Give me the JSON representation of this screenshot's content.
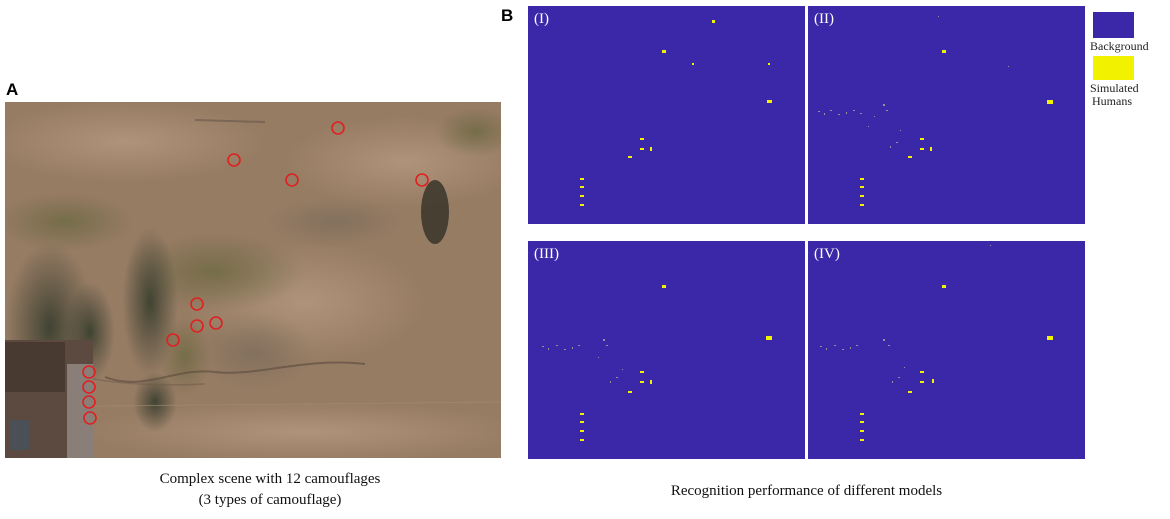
{
  "panel_a": {
    "letter": "A",
    "caption_line1": "Complex scene with 12 camouflages",
    "caption_line2": "(3 types of camouflage)",
    "marker_color": "#e02020"
  },
  "panel_b": {
    "letter": "B",
    "caption": "Recognition performance of different models",
    "maps": [
      {
        "label": "(I)"
      },
      {
        "label": "(II)"
      },
      {
        "label": "(III)"
      },
      {
        "label": "(IV)"
      }
    ]
  },
  "legend": {
    "background_label": "Background",
    "background_color": "#3b28a8",
    "humans_label_line1": "Simulated",
    "humans_label_line2": "Humans",
    "humans_color": "#f2f200"
  }
}
